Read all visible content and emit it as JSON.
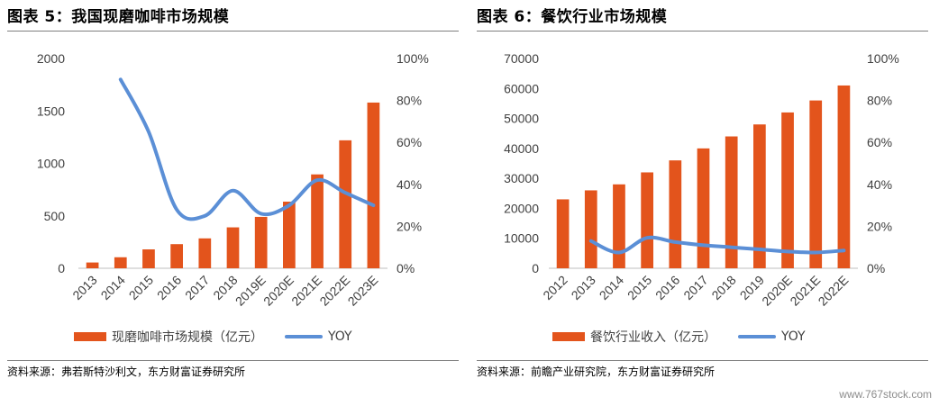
{
  "colors": {
    "bar": "#e3541c",
    "line": "#5b8fd6",
    "rule": "#7f7f7f",
    "tick": "#404040"
  },
  "left": {
    "title": "图表 5：我国现磨咖啡市场规模",
    "source": "资料来源：弗若斯特沙利文，东方财富证券研究所",
    "legend": {
      "bar_label": "现磨咖啡市场规模（亿元）",
      "line_label": "YOY"
    }
  },
  "right": {
    "title": "图表 6：餐饮行业市场规模",
    "source": "资料来源：前瞻产业研究院，东方财富证券研究所",
    "legend": {
      "bar_label": "餐饮行业收入（亿元）",
      "line_label": "YOY"
    }
  },
  "watermark": "www.767stock.com",
  "chart_data": [
    {
      "type": "bar",
      "title": "图表 5：我国现磨咖啡市场规模",
      "categories": [
        "2013",
        "2014",
        "2015",
        "2016",
        "2017",
        "2018",
        "2019E",
        "2020E",
        "2021E",
        "2022E",
        "2023E"
      ],
      "series": [
        {
          "name": "现磨咖啡市场规模（亿元）",
          "type": "bar",
          "axis": "left",
          "values": [
            55,
            105,
            180,
            230,
            285,
            390,
            490,
            635,
            895,
            1220,
            1580
          ]
        },
        {
          "name": "YOY",
          "type": "line",
          "axis": "right",
          "values": [
            null,
            0.9,
            0.65,
            0.28,
            0.25,
            0.37,
            0.26,
            0.3,
            0.42,
            0.36,
            0.3
          ]
        }
      ],
      "ylim_left": [
        0,
        2000
      ],
      "yticks_left": [
        "0",
        "500",
        "1000",
        "1500",
        "2000"
      ],
      "ylim_right": [
        0,
        1
      ],
      "yticks_right": [
        "0%",
        "20%",
        "40%",
        "60%",
        "80%",
        "100%"
      ],
      "legend_position": "bottom",
      "grid": false
    },
    {
      "type": "bar",
      "title": "图表 6：餐饮行业市场规模",
      "categories": [
        "2012",
        "2013",
        "2014",
        "2015",
        "2016",
        "2017",
        "2018",
        "2019",
        "2020E",
        "2021E",
        "2022E"
      ],
      "series": [
        {
          "name": "餐饮行业收入（亿元）",
          "type": "bar",
          "axis": "left",
          "values": [
            23000,
            26000,
            28000,
            32000,
            36000,
            40000,
            44000,
            48000,
            52000,
            56000,
            61000
          ]
        },
        {
          "name": "YOY",
          "type": "line",
          "axis": "right",
          "values": [
            null,
            0.13,
            0.075,
            0.145,
            0.125,
            0.11,
            0.1,
            0.09,
            0.08,
            0.075,
            0.085
          ]
        }
      ],
      "ylim_left": [
        0,
        70000
      ],
      "yticks_left": [
        "0",
        "10000",
        "20000",
        "30000",
        "40000",
        "50000",
        "60000",
        "70000"
      ],
      "ylim_right": [
        0,
        1
      ],
      "yticks_right": [
        "0%",
        "20%",
        "40%",
        "60%",
        "80%",
        "100%"
      ],
      "legend_position": "bottom",
      "grid": false
    }
  ]
}
